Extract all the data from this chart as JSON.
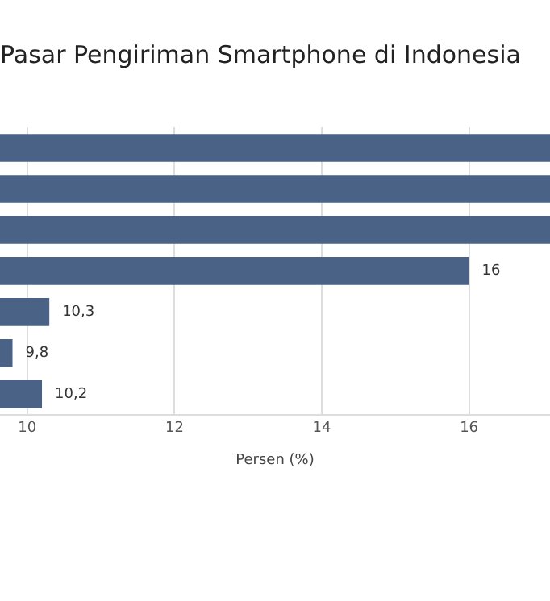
{
  "chart_data": {
    "type": "bar",
    "orientation": "horizontal",
    "title": "Pasar Pengiriman Smartphone di Indonesia",
    "xlabel": "Persen (%)",
    "categories": [
      null,
      null,
      null,
      null,
      null,
      null,
      null
    ],
    "values": [
      17.1,
      17.1,
      17.1,
      16,
      10.3,
      9.8,
      10.2
    ],
    "value_labels": [
      null,
      null,
      null,
      "16",
      "10,3",
      "9,8",
      "10,2"
    ],
    "color": "#4a6285",
    "xlim": [
      9.63,
      17.1
    ],
    "xticks": [
      10,
      12,
      14,
      16
    ],
    "grid": "x",
    "legend": false,
    "tick_labels": "x"
  }
}
